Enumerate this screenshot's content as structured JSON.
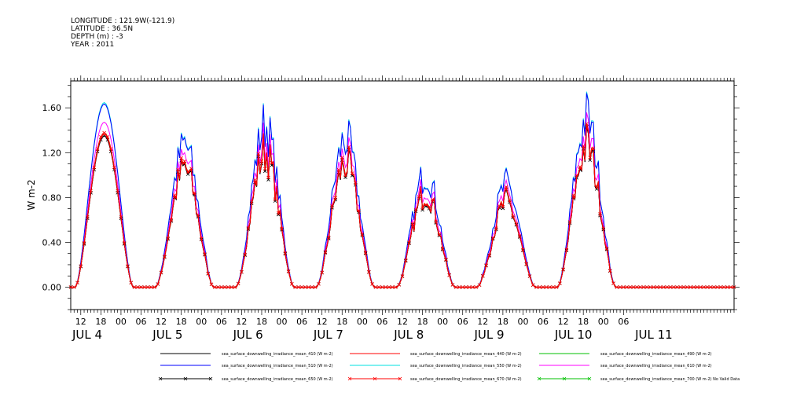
{
  "header": {
    "longitude": "LONGITUDE : 121.9W(-121.9)",
    "latitude": "LATITUDE : 36.5N",
    "depth": "DEPTH (m) : -3",
    "year": "YEAR : 2011"
  },
  "chart_data": {
    "type": "line",
    "title": "",
    "xlabel": "",
    "ylabel": "W m-2",
    "ylim": [
      -0.2,
      1.84
    ],
    "y_ticks": [
      "0.00",
      "0.40",
      "0.80",
      "1.20",
      "1.60"
    ],
    "y_tick_values": [
      0.0,
      0.4,
      0.8,
      1.2,
      1.6
    ],
    "x_range_hours": [
      -15,
      183
    ],
    "x_hour_ticks": [
      "12",
      "18",
      "00",
      "06",
      "12",
      "18",
      "00",
      "06",
      "12",
      "18",
      "00",
      "06",
      "12",
      "18",
      "00",
      "06",
      "12",
      "18",
      "00",
      "06",
      "12",
      "18",
      "00",
      "06",
      "12",
      "18",
      "00",
      "06"
    ],
    "x_hour_tick_values": [
      -12,
      -6,
      0,
      6,
      12,
      18,
      24,
      30,
      36,
      42,
      48,
      54,
      60,
      66,
      72,
      78,
      84,
      90,
      96,
      102,
      108,
      114,
      120,
      126,
      132,
      138,
      144,
      150
    ],
    "x_day_labels": [
      "JUL  4",
      "JUL  5",
      "JUL  6",
      "JUL  7",
      "JUL  8",
      "JUL  9",
      "JUL 10",
      "JUL 11"
    ],
    "x_day_label_hours": [
      -15,
      9,
      33,
      57,
      81,
      105,
      129,
      153
    ],
    "grid": false,
    "legend_position": "bottom",
    "daily_peaks": [
      {
        "day": "JUL  4",
        "peak_hour": -5,
        "base": 1.35,
        "noisy": false
      },
      {
        "day": "JUL  5",
        "peak_hour": 19,
        "base": 1.05,
        "noisy": true
      },
      {
        "day": "JUL  6",
        "peak_hour": 43,
        "base": 1.2,
        "noisy": true
      },
      {
        "day": "JUL  7",
        "peak_hour": 67,
        "base": 1.1,
        "noisy": true
      },
      {
        "day": "JUL  8",
        "peak_hour": 91,
        "base": 0.85,
        "noisy": true
      },
      {
        "day": "JUL  9",
        "peak_hour": 115,
        "base": 0.75,
        "noisy": true
      },
      {
        "day": "JUL 10",
        "peak_hour": 139,
        "base": 1.25,
        "noisy": true
      }
    ],
    "series": [
      {
        "name": "sea_surface_downwelling_irradiance_mean_410 (W m-2)",
        "color": "#000000",
        "marker": "none",
        "scale": 1.0
      },
      {
        "name": "sea_surface_downwelling_irradiance_mean_440 (W m-2)",
        "color": "#ff0000",
        "marker": "none",
        "scale": 1.01
      },
      {
        "name": "sea_surface_downwelling_irradiance_mean_490 (W m-2)",
        "color": "#00c000",
        "marker": "none",
        "scale": 1.02
      },
      {
        "name": "sea_surface_downwelling_irradiance_mean_510 (W m-2)",
        "color": "#0000ff",
        "marker": "none",
        "scale": 1.21
      },
      {
        "name": "sea_surface_downwelling_irradiance_mean_550 (W m-2)",
        "color": "#00e0e0",
        "marker": "none",
        "scale": 1.22
      },
      {
        "name": "sea_surface_downwelling_irradiance_mean_610 (W m-2)",
        "color": "#ff00ff",
        "marker": "none",
        "scale": 1.09
      },
      {
        "name": "sea_surface_downwelling_irradiance_mean_650 (W m-2)",
        "color": "#000000",
        "marker": "x",
        "scale": 1.0
      },
      {
        "name": "sea_surface_downwelling_irradiance_mean_670 (W m-2)",
        "color": "#ff0000",
        "marker": "x",
        "scale": 1.02
      },
      {
        "name": "sea_surface_downwelling_irradiance_mean_700 (W m-2) No Valid Data",
        "color": "#00c000",
        "marker": "x",
        "scale": 0
      }
    ]
  }
}
